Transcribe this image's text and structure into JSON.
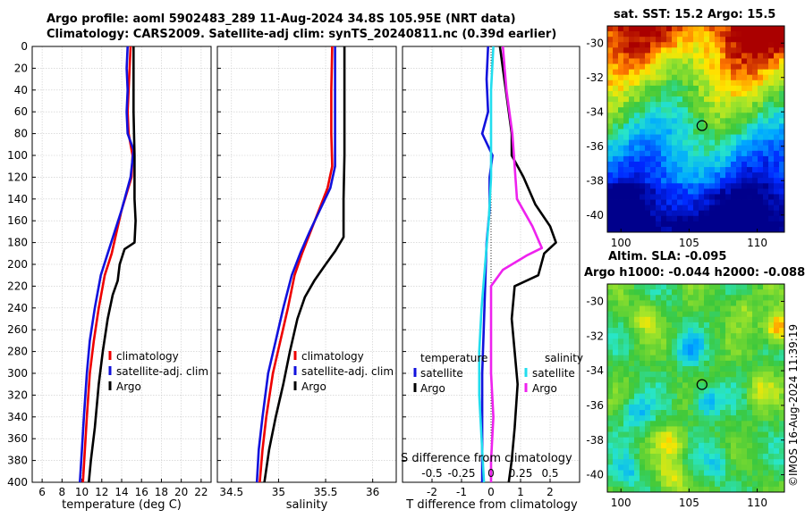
{
  "header": {
    "title_line1": "Argo profile: aoml 5902483_289 11-Aug-2024 34.8S 105.95E (NRT data)",
    "title_line2": "Climatology: CARS2009. Satellite-adj clim: synTS_20240811.nc (0.39d earlier)"
  },
  "credit": "©IMOS 16-Aug-2024 11:39:19",
  "colors": {
    "red": "#ee0000",
    "blue": "#1111dd",
    "black": "#000000",
    "cyan": "#22ddee",
    "magenta": "#ee22ee"
  },
  "chart_data": [
    {
      "type": "line",
      "id": "temperature",
      "xlabel": "temperature (deg C)",
      "ylabel": "",
      "xlim": [
        5,
        23
      ],
      "ylim": [
        0,
        400
      ],
      "xticks": [
        6,
        8,
        10,
        12,
        14,
        16,
        18,
        20,
        22
      ],
      "yticks": [
        0,
        20,
        40,
        60,
        80,
        100,
        120,
        140,
        160,
        180,
        200,
        220,
        240,
        260,
        280,
        300,
        320,
        340,
        360,
        380,
        400
      ],
      "legend": [
        "climatology",
        "satellite-adj. clim",
        "Argo"
      ],
      "series": [
        {
          "name": "climatology",
          "color": "red",
          "points": [
            [
              14.9,
              0
            ],
            [
              14.8,
              20
            ],
            [
              14.7,
              40
            ],
            [
              14.6,
              60
            ],
            [
              14.7,
              80
            ],
            [
              15.1,
              100
            ],
            [
              15.0,
              120
            ],
            [
              14.0,
              150
            ],
            [
              13.5,
              170
            ],
            [
              13.0,
              190
            ],
            [
              12.3,
              210
            ],
            [
              11.7,
              240
            ],
            [
              11.2,
              270
            ],
            [
              10.8,
              300
            ],
            [
              10.5,
              340
            ],
            [
              10.3,
              370
            ],
            [
              10.1,
              400
            ]
          ]
        },
        {
          "name": "satellite-adj. clim",
          "color": "blue",
          "points": [
            [
              14.6,
              0
            ],
            [
              14.5,
              20
            ],
            [
              14.6,
              40
            ],
            [
              14.5,
              60
            ],
            [
              14.6,
              80
            ],
            [
              15.2,
              95
            ],
            [
              14.9,
              120
            ],
            [
              14.0,
              150
            ],
            [
              13.3,
              170
            ],
            [
              12.6,
              190
            ],
            [
              11.9,
              210
            ],
            [
              11.3,
              240
            ],
            [
              10.8,
              270
            ],
            [
              10.5,
              300
            ],
            [
              10.2,
              340
            ],
            [
              10.0,
              370
            ],
            [
              9.8,
              400
            ]
          ]
        },
        {
          "name": "Argo",
          "color": "black",
          "points": [
            [
              15.2,
              0
            ],
            [
              15.2,
              60
            ],
            [
              15.3,
              100
            ],
            [
              15.3,
              140
            ],
            [
              15.4,
              160
            ],
            [
              15.3,
              180
            ],
            [
              14.3,
              186
            ],
            [
              13.8,
              200
            ],
            [
              13.6,
              215
            ],
            [
              13.1,
              228
            ],
            [
              12.6,
              250
            ],
            [
              12.1,
              280
            ],
            [
              11.7,
              310
            ],
            [
              11.3,
              350
            ],
            [
              10.9,
              380
            ],
            [
              10.7,
              400
            ]
          ]
        }
      ]
    },
    {
      "type": "line",
      "id": "salinity",
      "xlabel": "salinity",
      "ylabel": "",
      "xlim": [
        34.35,
        36.25
      ],
      "ylim": [
        0,
        400
      ],
      "xticks": [
        34.5,
        35,
        35.5,
        36
      ],
      "yticks": [
        0,
        20,
        40,
        60,
        80,
        100,
        120,
        140,
        160,
        180,
        200,
        220,
        240,
        260,
        280,
        300,
        320,
        340,
        360,
        380,
        400
      ],
      "legend": [
        "climatology",
        "satellite-adj. clim",
        "Argo"
      ],
      "series": [
        {
          "name": "climatology",
          "color": "red",
          "points": [
            [
              35.57,
              0
            ],
            [
              35.56,
              40
            ],
            [
              35.56,
              80
            ],
            [
              35.57,
              110
            ],
            [
              35.52,
              130
            ],
            [
              35.43,
              150
            ],
            [
              35.34,
              170
            ],
            [
              35.25,
              190
            ],
            [
              35.17,
              210
            ],
            [
              35.1,
              240
            ],
            [
              35.02,
              270
            ],
            [
              34.94,
              300
            ],
            [
              34.87,
              340
            ],
            [
              34.83,
              370
            ],
            [
              34.8,
              400
            ]
          ]
        },
        {
          "name": "satellite-adj. clim",
          "color": "blue",
          "points": [
            [
              35.6,
              0
            ],
            [
              35.6,
              40
            ],
            [
              35.6,
              80
            ],
            [
              35.6,
              110
            ],
            [
              35.55,
              130
            ],
            [
              35.44,
              150
            ],
            [
              35.33,
              170
            ],
            [
              35.23,
              190
            ],
            [
              35.14,
              210
            ],
            [
              35.05,
              240
            ],
            [
              34.97,
              270
            ],
            [
              34.89,
              300
            ],
            [
              34.83,
              340
            ],
            [
              34.79,
              370
            ],
            [
              34.77,
              400
            ]
          ]
        },
        {
          "name": "Argo",
          "color": "black",
          "points": [
            [
              35.7,
              0
            ],
            [
              35.7,
              100
            ],
            [
              35.69,
              140
            ],
            [
              35.69,
              175
            ],
            [
              35.6,
              188
            ],
            [
              35.5,
              200
            ],
            [
              35.38,
              215
            ],
            [
              35.28,
              230
            ],
            [
              35.2,
              250
            ],
            [
              35.12,
              280
            ],
            [
              35.05,
              310
            ],
            [
              34.97,
              340
            ],
            [
              34.9,
              370
            ],
            [
              34.85,
              400
            ]
          ]
        }
      ]
    },
    {
      "type": "line",
      "id": "difference",
      "xlabel": "T difference from climatology",
      "xlabel_top": "S difference from climatology",
      "ylabel": "",
      "xlim": [
        -3,
        3
      ],
      "ylim": [
        0,
        400
      ],
      "xticks": [
        -2,
        -1,
        0,
        1,
        2
      ],
      "xtick_labels": [
        "-2",
        "-1",
        "0",
        "1",
        "2"
      ],
      "sticks": [
        -0.5,
        -0.25,
        0,
        0.25,
        0.5
      ],
      "stick_labels": [
        "-0.5",
        "-0.25",
        "0",
        "0.25",
        "0.5"
      ],
      "yticks": [
        0,
        20,
        40,
        60,
        80,
        100,
        120,
        140,
        160,
        180,
        200,
        220,
        240,
        260,
        280,
        300,
        320,
        340,
        360,
        380,
        400
      ],
      "legend_left_title": "temperature",
      "legend_left": [
        "satellite",
        "Argo"
      ],
      "legend_right_title": "salinity",
      "legend_right": [
        "satellite",
        "Argo"
      ],
      "series": [
        {
          "name": "T satellite",
          "color": "blue",
          "points": [
            [
              -0.1,
              0
            ],
            [
              -0.15,
              30
            ],
            [
              -0.1,
              60
            ],
            [
              -0.3,
              80
            ],
            [
              0.05,
              100
            ],
            [
              -0.05,
              120
            ],
            [
              -0.05,
              150
            ],
            [
              -0.15,
              180
            ],
            [
              -0.2,
              220
            ],
            [
              -0.25,
              260
            ],
            [
              -0.3,
              300
            ],
            [
              -0.3,
              340
            ],
            [
              -0.3,
              370
            ],
            [
              -0.3,
              400
            ]
          ]
        },
        {
          "name": "T Argo",
          "color": "black",
          "points": [
            [
              0.3,
              0
            ],
            [
              0.4,
              20
            ],
            [
              0.5,
              40
            ],
            [
              0.6,
              60
            ],
            [
              0.7,
              80
            ],
            [
              0.7,
              100
            ],
            [
              1.1,
              120
            ],
            [
              1.5,
              145
            ],
            [
              2.0,
              165
            ],
            [
              2.2,
              180
            ],
            [
              1.8,
              190
            ],
            [
              1.6,
              210
            ],
            [
              0.8,
              220
            ],
            [
              0.7,
              250
            ],
            [
              0.8,
              280
            ],
            [
              0.9,
              310
            ],
            [
              0.8,
              350
            ],
            [
              0.7,
              380
            ],
            [
              0.6,
              400
            ]
          ]
        },
        {
          "name": "S satellite",
          "color": "cyan",
          "points": [
            [
              0.02,
              0
            ],
            [
              0.0,
              40
            ],
            [
              0.0,
              80
            ],
            [
              0.0,
              120
            ],
            [
              -0.02,
              160
            ],
            [
              -0.05,
              200
            ],
            [
              -0.08,
              240
            ],
            [
              -0.1,
              280
            ],
            [
              -0.1,
              320
            ],
            [
              -0.08,
              360
            ],
            [
              -0.06,
              400
            ]
          ]
        },
        {
          "name": "S Argo",
          "color": "magenta",
          "points": [
            [
              0.1,
              0
            ],
            [
              0.13,
              40
            ],
            [
              0.18,
              80
            ],
            [
              0.2,
              110
            ],
            [
              0.22,
              140
            ],
            [
              0.35,
              165
            ],
            [
              0.43,
              185
            ],
            [
              0.3,
              192
            ],
            [
              0.1,
              205
            ],
            [
              0.0,
              220
            ],
            [
              0.0,
              260
            ],
            [
              0.0,
              300
            ],
            [
              0.02,
              340
            ],
            [
              0.0,
              380
            ],
            [
              0.0,
              400
            ]
          ]
        }
      ]
    },
    {
      "type": "heatmap",
      "id": "sst",
      "title": "sat. SST: 15.2 Argo: 15.5",
      "xlim": [
        99,
        112
      ],
      "ylim": [
        -41,
        -29
      ],
      "xticks": [
        100,
        105,
        110
      ],
      "yticks": [
        -30,
        -32,
        -34,
        -36,
        -38,
        -40
      ],
      "ytick_labels": [
        "-30",
        "-32",
        "-34",
        "-36",
        "-38",
        "-40"
      ],
      "marker": [
        105.95,
        -34.8
      ]
    },
    {
      "type": "heatmap",
      "id": "sla",
      "title": "Altim. SLA: -0.095",
      "subtitle": "Argo h1000: -0.044 h2000: -0.088",
      "xlim": [
        99,
        112
      ],
      "ylim": [
        -41,
        -29
      ],
      "xticks": [
        100,
        105,
        110
      ],
      "yticks": [
        -30,
        -32,
        -34,
        -36,
        -38,
        -40
      ],
      "ytick_labels": [
        "-30",
        "-32",
        "-34",
        "-36",
        "-38",
        "-40"
      ],
      "marker": [
        105.95,
        -34.8
      ]
    }
  ]
}
